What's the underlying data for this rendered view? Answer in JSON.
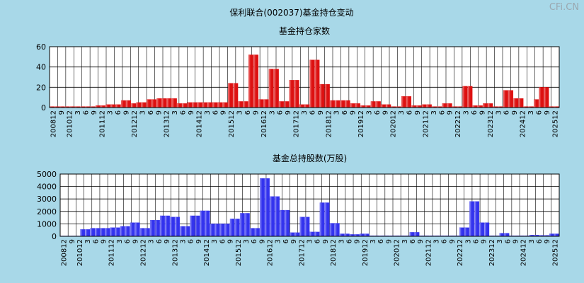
{
  "page": {
    "title": "保利联合(002037)基金持仓变动",
    "watermark": "CFi.CN"
  },
  "chart_data": [
    {
      "type": "bar",
      "title": "基金持仓家数",
      "ylim": [
        0,
        60
      ],
      "yticks": [
        0,
        20,
        40,
        60
      ],
      "grid": true,
      "series": [
        {
          "color": "#dd1111",
          "values": [
            1,
            1,
            1,
            1,
            1,
            1,
            1,
            1,
            1,
            2,
            2,
            3,
            3,
            3,
            7,
            7,
            4,
            5,
            5,
            8,
            8,
            9,
            9,
            9,
            9,
            4,
            4,
            5,
            5,
            5,
            5,
            5,
            5,
            5,
            5,
            24,
            24,
            6,
            6,
            52,
            52,
            8,
            8,
            38,
            38,
            6,
            6,
            27,
            27,
            3,
            3,
            47,
            47,
            23,
            23,
            7,
            7,
            7,
            7,
            4,
            4,
            2,
            2,
            6,
            6,
            3,
            3,
            1,
            1,
            11,
            11,
            2,
            2,
            3,
            3,
            1,
            1,
            4,
            4,
            1,
            1,
            21,
            21,
            2,
            2,
            4,
            4,
            1,
            1,
            17,
            17,
            9,
            9,
            1,
            1,
            8,
            20,
            20,
            1,
            1
          ]
        }
      ],
      "xtick_labels": [
        "200812",
        "9",
        "201012",
        "3",
        "6",
        "9",
        "201112",
        "3",
        "6",
        "9",
        "201212",
        "3",
        "6",
        "9",
        "201312",
        "3",
        "6",
        "9",
        "201412",
        "3",
        "6",
        "9",
        "201512",
        "3",
        "6",
        "9",
        "201612",
        "3",
        "6",
        "9",
        "201712",
        "3",
        "6",
        "9",
        "201812",
        "3",
        "6",
        "9",
        "201912",
        "3",
        "6",
        "9",
        "202012",
        "3",
        "6",
        "9",
        "202112",
        "3",
        "6",
        "9",
        "202212",
        "3",
        "6",
        "9",
        "202312",
        "3",
        "6",
        "9",
        "202412",
        "3",
        "6",
        "9",
        "202512"
      ]
    },
    {
      "type": "bar",
      "title": "基金总持股数(万股)",
      "ylim": [
        0,
        5000
      ],
      "yticks": [
        0,
        1000,
        2000,
        3000,
        4000,
        5000
      ],
      "grid": true,
      "series": [
        {
          "color": "#3333ee",
          "values": [
            30,
            30,
            30,
            30,
            550,
            550,
            650,
            650,
            650,
            650,
            700,
            700,
            800,
            800,
            1100,
            1100,
            650,
            650,
            1300,
            1300,
            1650,
            1650,
            1550,
            1550,
            800,
            800,
            1650,
            1650,
            2050,
            2050,
            1000,
            1000,
            1000,
            1000,
            1400,
            1400,
            1850,
            1850,
            650,
            650,
            4650,
            4650,
            3200,
            3200,
            2100,
            2100,
            300,
            300,
            1550,
            1550,
            350,
            350,
            2700,
            2700,
            1050,
            1050,
            200,
            200,
            150,
            150,
            200,
            200,
            50,
            50,
            50,
            50,
            50,
            50,
            50,
            50,
            320,
            320,
            50,
            50,
            50,
            50,
            50,
            50,
            50,
            50,
            700,
            700,
            2800,
            2800,
            1100,
            1100,
            50,
            50,
            250,
            250,
            50,
            50,
            50,
            50,
            100,
            100,
            80,
            80,
            200,
            200
          ]
        }
      ],
      "xtick_labels": [
        "200812",
        "9",
        "201012",
        "3",
        "6",
        "9",
        "201112",
        "3",
        "6",
        "9",
        "201212",
        "3",
        "6",
        "9",
        "201312",
        "3",
        "6",
        "9",
        "201412",
        "3",
        "6",
        "9",
        "201512",
        "3",
        "6",
        "9",
        "201612",
        "3",
        "6",
        "9",
        "201712",
        "3",
        "6",
        "9",
        "201812",
        "3",
        "6",
        "9",
        "201912",
        "3",
        "6",
        "9",
        "202012",
        "3",
        "6",
        "9",
        "202112",
        "3",
        "6",
        "9",
        "202212",
        "3",
        "6",
        "9",
        "202312",
        "3",
        "6",
        "9",
        "202412",
        "3",
        "6",
        "9",
        "202512"
      ]
    }
  ]
}
